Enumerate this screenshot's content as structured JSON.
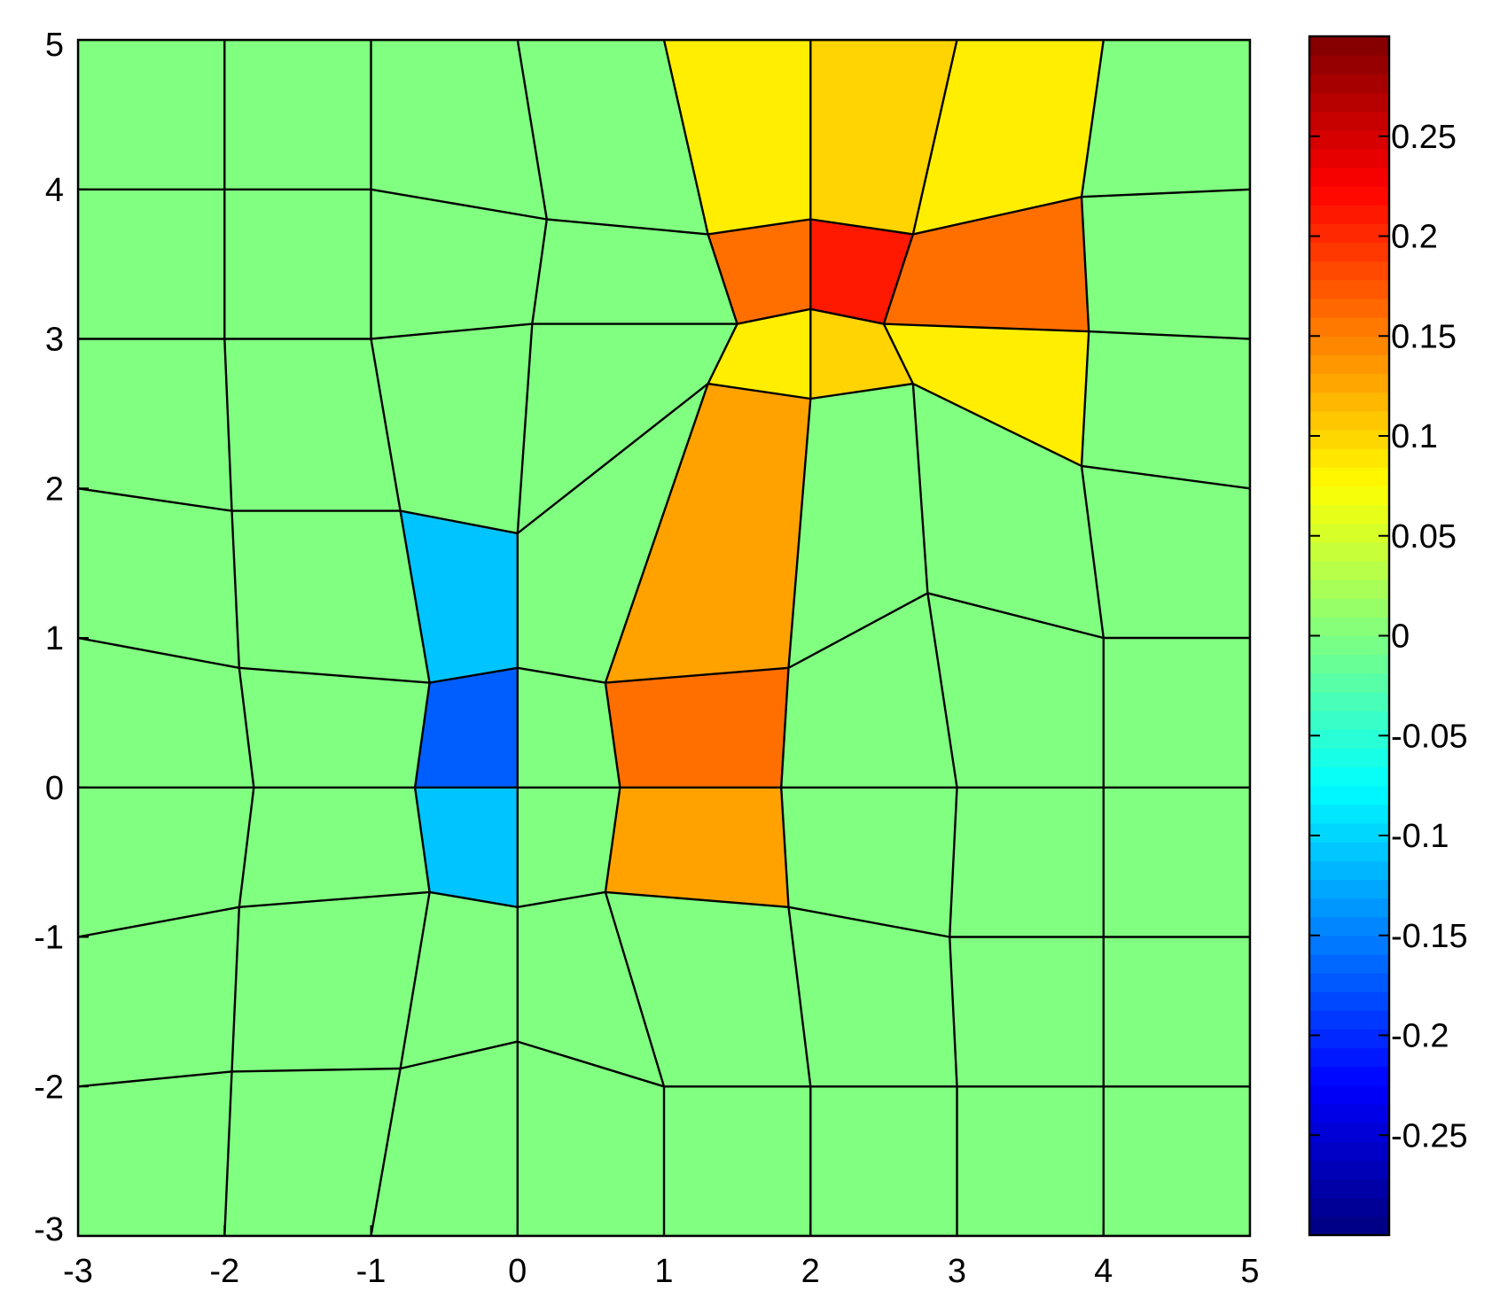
{
  "chart_data": {
    "type": "heatmap",
    "title": "",
    "xlabel": "",
    "ylabel": "",
    "xlim": [
      -3,
      5
    ],
    "ylim": [
      -3,
      5
    ],
    "x_ticks": [
      "-3",
      "-2",
      "-1",
      "0",
      "1",
      "2",
      "3",
      "4",
      "5"
    ],
    "y_ticks": [
      "-3",
      "-2",
      "-1",
      "0",
      "1",
      "2",
      "3",
      "4",
      "5"
    ],
    "colorbar": {
      "colormap": "jet",
      "range": [
        -0.3,
        0.3
      ],
      "ticks": [
        {
          "value": 0.25,
          "label": "0.25"
        },
        {
          "value": 0.2,
          "label": "0.2"
        },
        {
          "value": 0.15,
          "label": "0.15"
        },
        {
          "value": 0.1,
          "label": "0.1"
        },
        {
          "value": 0.05,
          "label": "0.05"
        },
        {
          "value": 0,
          "label": "0"
        },
        {
          "value": -0.05,
          "label": "-0.05"
        },
        {
          "value": -0.1,
          "label": "-0.1"
        },
        {
          "value": -0.15,
          "label": "-0.15"
        },
        {
          "value": -0.2,
          "label": "-0.2"
        },
        {
          "value": -0.25,
          "label": "-0.25"
        }
      ]
    },
    "grid": {
      "rows": [
        [
          [
            -3,
            -3
          ],
          [
            -2,
            -3
          ],
          [
            -1,
            -3
          ],
          [
            0,
            -3
          ],
          [
            1,
            -3
          ],
          [
            2,
            -3
          ],
          [
            3,
            -3
          ],
          [
            4,
            -3
          ],
          [
            5,
            -3
          ]
        ],
        [
          [
            -3,
            -2
          ],
          [
            -1.95,
            -1.9
          ],
          [
            -0.8,
            -1.88
          ],
          [
            0,
            -1.7
          ],
          [
            1,
            -2
          ],
          [
            2,
            -2
          ],
          [
            3,
            -2
          ],
          [
            4,
            -2
          ],
          [
            5,
            -2
          ]
        ],
        [
          [
            -3,
            -1
          ],
          [
            -1.9,
            -0.8
          ],
          [
            -0.6,
            -0.7
          ],
          [
            0,
            -0.8
          ],
          [
            0.6,
            -0.7
          ],
          [
            1.85,
            -0.8
          ],
          [
            2.95,
            -1
          ],
          [
            4,
            -1
          ],
          [
            5,
            -1
          ]
        ],
        [
          [
            -3,
            0
          ],
          [
            -1.8,
            0
          ],
          [
            -0.7,
            0
          ],
          [
            0,
            0
          ],
          [
            0.7,
            0
          ],
          [
            1.8,
            0
          ],
          [
            3,
            0
          ],
          [
            4,
            0
          ],
          [
            5,
            0
          ]
        ],
        [
          [
            -3,
            1
          ],
          [
            -1.9,
            0.8
          ],
          [
            -0.6,
            0.7
          ],
          [
            0,
            0.8
          ],
          [
            0.6,
            0.7
          ],
          [
            1.85,
            0.8
          ],
          [
            2.8,
            1.3
          ],
          [
            4,
            1
          ],
          [
            5,
            1
          ]
        ],
        [
          [
            -3,
            2
          ],
          [
            -1.95,
            1.85
          ],
          [
            -0.8,
            1.85
          ],
          [
            0,
            1.7
          ],
          [
            1.3,
            2.7
          ],
          [
            2,
            2.6
          ],
          [
            2.7,
            2.7
          ],
          [
            3.85,
            2.15
          ],
          [
            5,
            2
          ]
        ],
        [
          [
            -3,
            3
          ],
          [
            -2,
            3
          ],
          [
            -1,
            3
          ],
          [
            0.1,
            3.1
          ],
          [
            1.5,
            3.1
          ],
          [
            2,
            3.2
          ],
          [
            2.5,
            3.1
          ],
          [
            3.9,
            3.05
          ],
          [
            5,
            3
          ]
        ],
        [
          [
            -3,
            4
          ],
          [
            -2,
            4
          ],
          [
            -1,
            4
          ],
          [
            0.2,
            3.8
          ],
          [
            1.3,
            3.7
          ],
          [
            2,
            3.8
          ],
          [
            2.7,
            3.7
          ],
          [
            3.85,
            3.95
          ],
          [
            5,
            4
          ]
        ],
        [
          [
            -3,
            5
          ],
          [
            -2,
            5
          ],
          [
            -1,
            5
          ],
          [
            0,
            5
          ],
          [
            1,
            5
          ],
          [
            2,
            5
          ],
          [
            3,
            5
          ],
          [
            4,
            5
          ],
          [
            5,
            5
          ]
        ]
      ],
      "cell_values": [
        [
          0,
          0,
          0,
          0,
          0,
          0,
          0,
          0
        ],
        [
          0,
          0,
          0,
          0,
          0,
          0,
          0,
          0
        ],
        [
          0,
          0,
          -0.11,
          0,
          0.13,
          0,
          0,
          0
        ],
        [
          0,
          0,
          -0.17,
          0,
          0.16,
          0,
          0,
          0
        ],
        [
          0,
          0,
          -0.11,
          0,
          0.13,
          0,
          0,
          0
        ],
        [
          0,
          0,
          0,
          0,
          0.085,
          0.1,
          0.085,
          0
        ],
        [
          0,
          0,
          0,
          0,
          0.16,
          0.21,
          0.16,
          0
        ],
        [
          0,
          0,
          0,
          0,
          0.085,
          0.1,
          0.085,
          0
        ]
      ]
    }
  }
}
